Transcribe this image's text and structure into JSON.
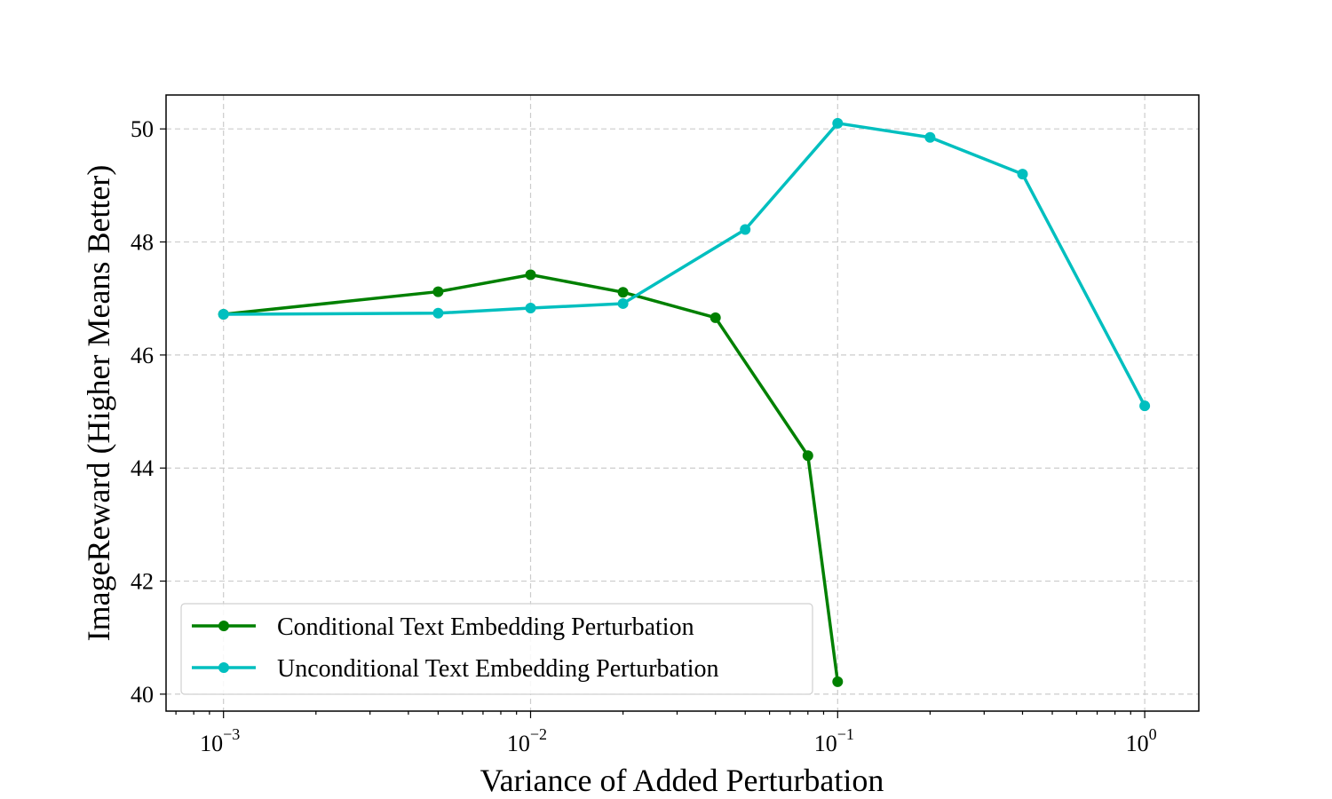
{
  "chart_data": {
    "type": "line",
    "title": "",
    "xlabel": "Variance of Added Perturbation",
    "ylabel": "ImageReward (Higher Means Better)",
    "x_scale": "log",
    "xlim": [
      0.00065,
      1.5
    ],
    "ylim": [
      39.7,
      50.6
    ],
    "x_ticks": [
      {
        "value": 0.001,
        "base": "10",
        "exp": "−3"
      },
      {
        "value": 0.01,
        "base": "10",
        "exp": "−2"
      },
      {
        "value": 0.1,
        "base": "10",
        "exp": "−1"
      },
      {
        "value": 1,
        "base": "10",
        "exp": "0"
      }
    ],
    "y_ticks": [
      40,
      42,
      44,
      46,
      48,
      50
    ],
    "grid": true,
    "legend_position": "lower-left",
    "series": [
      {
        "name": "Conditional Text Embedding Perturbation",
        "color": "#008000",
        "x": [
          0.001,
          0.005,
          0.01,
          0.02,
          0.04,
          0.08,
          0.1
        ],
        "y": [
          46.72,
          47.12,
          47.42,
          47.11,
          46.66,
          44.22,
          40.22
        ]
      },
      {
        "name": "Unconditional Text Embedding Perturbation",
        "color": "#00bfbf",
        "x": [
          0.001,
          0.005,
          0.01,
          0.02,
          0.05,
          0.1,
          0.2,
          0.4,
          1
        ],
        "y": [
          46.72,
          46.74,
          46.83,
          46.91,
          48.22,
          50.1,
          49.85,
          49.2,
          45.1
        ]
      }
    ]
  }
}
